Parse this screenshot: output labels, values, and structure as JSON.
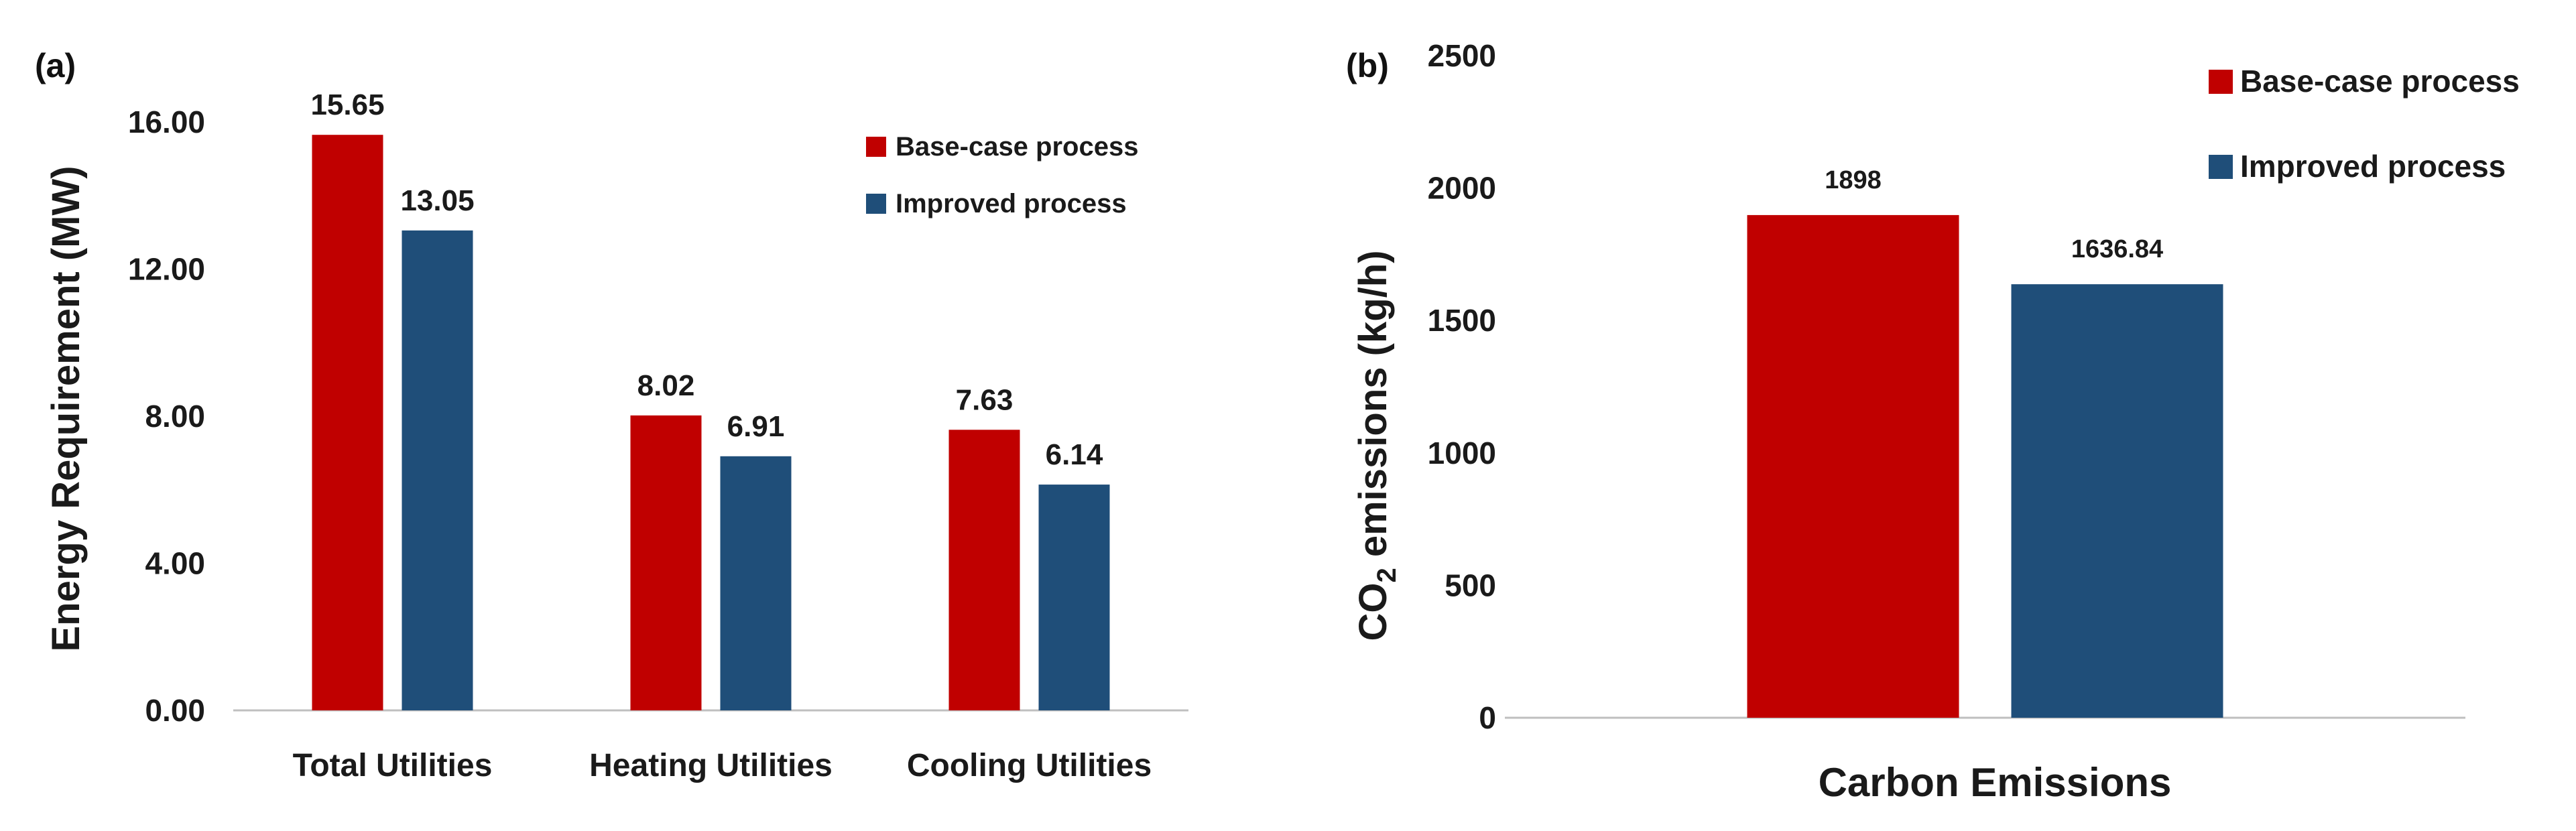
{
  "chart_data": [
    {
      "panel": "(a)",
      "type": "bar",
      "title": "",
      "xlabel": "",
      "ylabel": "Energy Requirement (MW)",
      "ylim": [
        0,
        16
      ],
      "yticks": [
        "0.00",
        "4.00",
        "8.00",
        "12.00",
        "16.00"
      ],
      "ytick_values": [
        0,
        4,
        8,
        12,
        16
      ],
      "categories": [
        "Total Utilities",
        "Heating Utilities",
        "Cooling Utilities"
      ],
      "series": [
        {
          "name": "Base-case process",
          "color": "#C00000",
          "values": [
            15.65,
            8.02,
            7.63
          ],
          "labels": [
            "15.65",
            "8.02",
            "7.63"
          ]
        },
        {
          "name": "Improved process",
          "color": "#1F4E79",
          "values": [
            13.05,
            6.91,
            6.14
          ],
          "labels": [
            "13.05",
            "6.91",
            "6.14"
          ]
        }
      ],
      "legend": "top-right",
      "grid": false
    },
    {
      "panel": "(b)",
      "type": "bar",
      "title": "",
      "xlabel": "Carbon Emissions",
      "ylabel_main": "CO",
      "ylabel_sub": "2",
      "ylabel_rest": " emissions (kg/h)",
      "ylim": [
        0,
        2500
      ],
      "yticks": [
        "0",
        "500",
        "1000",
        "1500",
        "2000",
        "2500"
      ],
      "ytick_values": [
        0,
        500,
        1000,
        1500,
        2000,
        2500
      ],
      "categories": [
        "Carbon Emissions"
      ],
      "series": [
        {
          "name": "Base-case process",
          "color": "#C00000",
          "values": [
            1898
          ],
          "labels": [
            "1898"
          ]
        },
        {
          "name": "Improved process",
          "color": "#1F4E79",
          "values": [
            1636.84
          ],
          "labels": [
            "1636.84"
          ]
        }
      ],
      "legend": "top-right",
      "grid": false
    }
  ]
}
